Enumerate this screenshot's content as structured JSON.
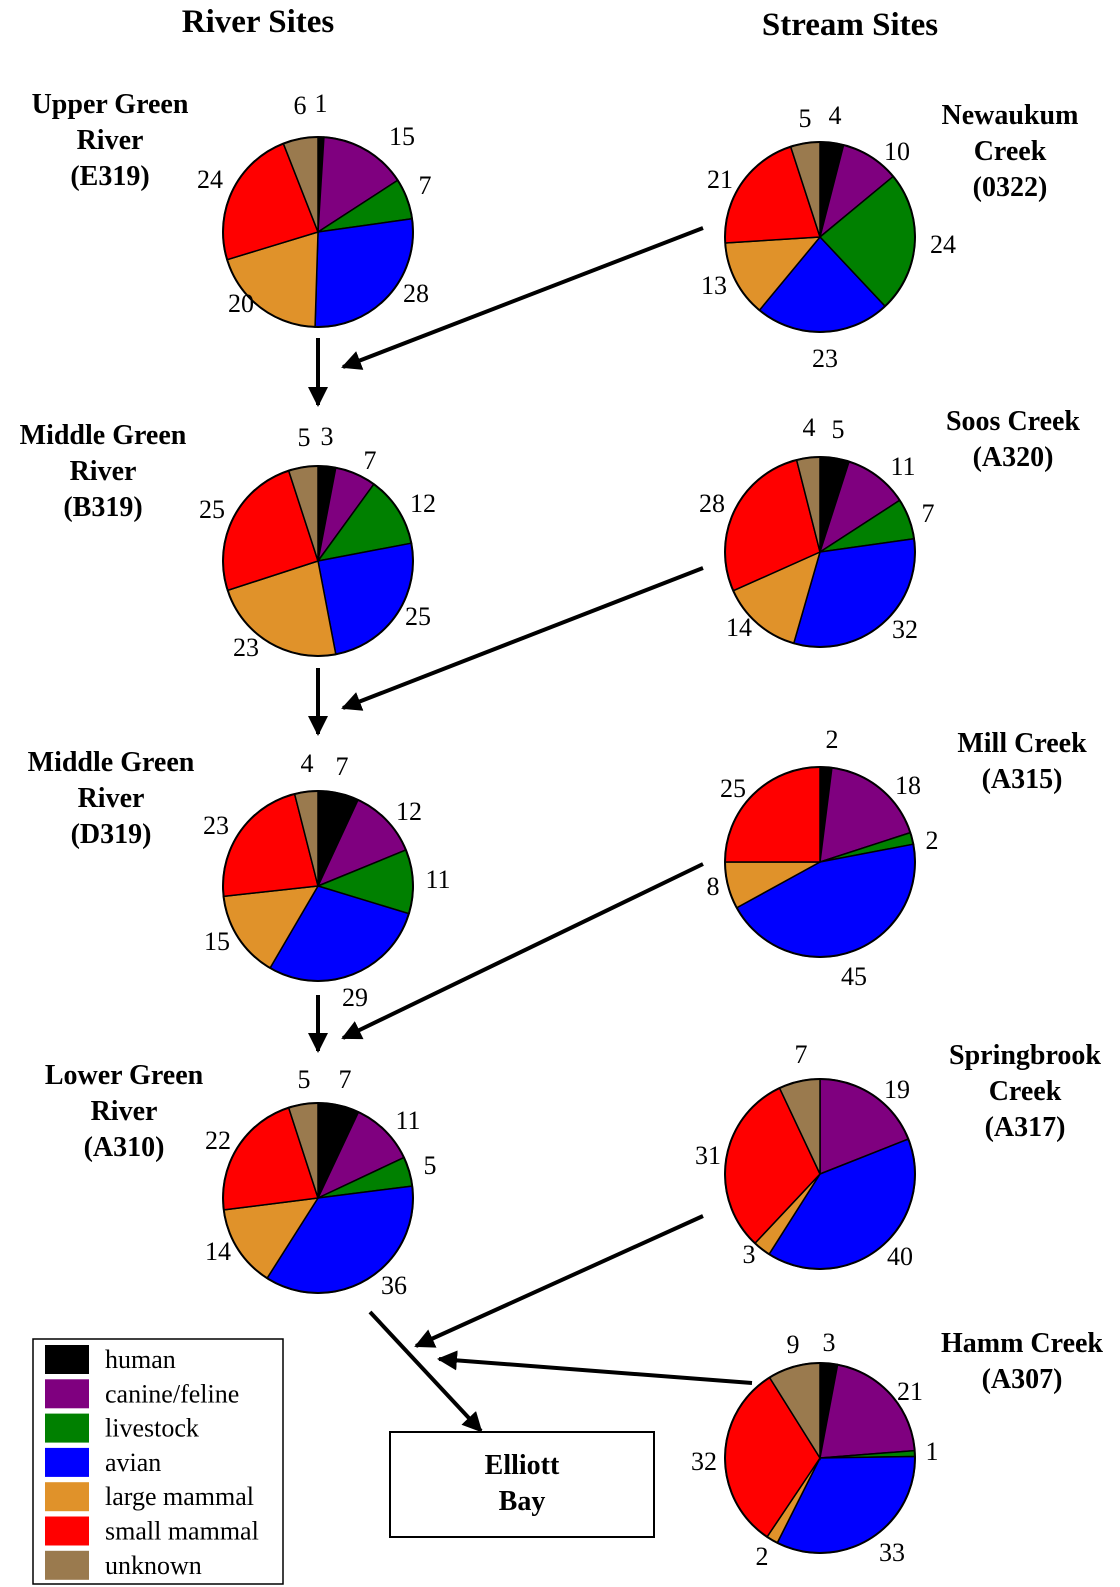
{
  "headings": {
    "river": "River Sites",
    "stream": "Stream Sites"
  },
  "destination": {
    "line1": "Elliott",
    "line2": "Bay"
  },
  "legend": [
    {
      "label": "human",
      "color": "#000000"
    },
    {
      "label": "canine/feline",
      "color": "#7f007f"
    },
    {
      "label": "livestock",
      "color": "#008000"
    },
    {
      "label": "avian",
      "color": "#0000ff"
    },
    {
      "label": "large mammal",
      "color": "#e0922a"
    },
    {
      "label": "small mammal",
      "color": "#ff0000"
    },
    {
      "label": "unknown",
      "color": "#9a7a4e"
    }
  ],
  "chart_data": [
    {
      "type": "pie",
      "site": [
        "Upper Green",
        "River",
        "(E319)"
      ],
      "categories": [
        "human",
        "canine/feline",
        "livestock",
        "avian",
        "large mammal",
        "small mammal",
        "unknown"
      ],
      "values": [
        1,
        15,
        7,
        28,
        20,
        24,
        6
      ]
    },
    {
      "type": "pie",
      "site": [
        "Middle Green",
        "River",
        "(B319)"
      ],
      "categories": [
        "human",
        "canine/feline",
        "livestock",
        "avian",
        "large mammal",
        "small mammal",
        "unknown"
      ],
      "values": [
        3,
        7,
        12,
        25,
        23,
        25,
        5
      ]
    },
    {
      "type": "pie",
      "site": [
        "Middle Green",
        "River",
        "(D319)"
      ],
      "categories": [
        "human",
        "canine/feline",
        "livestock",
        "avian",
        "large mammal",
        "small mammal",
        "unknown"
      ],
      "values": [
        7,
        12,
        11,
        29,
        15,
        23,
        4
      ]
    },
    {
      "type": "pie",
      "site": [
        "Lower Green",
        "River",
        "(A310)"
      ],
      "categories": [
        "human",
        "canine/feline",
        "livestock",
        "avian",
        "large mammal",
        "small mammal",
        "unknown"
      ],
      "values": [
        7,
        11,
        5,
        36,
        14,
        22,
        5
      ]
    },
    {
      "type": "pie",
      "site": [
        "Newaukum",
        "Creek",
        "(0322)"
      ],
      "categories": [
        "human",
        "canine/feline",
        "livestock",
        "avian",
        "large mammal",
        "small mammal",
        "unknown"
      ],
      "values": [
        4,
        10,
        24,
        23,
        13,
        21,
        5
      ]
    },
    {
      "type": "pie",
      "site": [
        "Soos Creek",
        "(A320)"
      ],
      "categories": [
        "human",
        "canine/feline",
        "livestock",
        "avian",
        "large mammal",
        "small mammal",
        "unknown"
      ],
      "values": [
        5,
        11,
        7,
        32,
        14,
        28,
        4
      ]
    },
    {
      "type": "pie",
      "site": [
        "Mill Creek",
        "(A315)"
      ],
      "categories": [
        "human",
        "canine/feline",
        "livestock",
        "avian",
        "large mammal",
        "small mammal",
        "unknown"
      ],
      "values": [
        2,
        18,
        2,
        45,
        8,
        25,
        0
      ]
    },
    {
      "type": "pie",
      "site": [
        "Springbrook",
        "Creek",
        "(A317)"
      ],
      "categories": [
        "human",
        "canine/feline",
        "livestock",
        "avian",
        "large mammal",
        "small mammal",
        "unknown"
      ],
      "values": [
        0,
        19,
        0,
        40,
        3,
        31,
        7
      ]
    },
    {
      "type": "pie",
      "site": [
        "Hamm Creek",
        "(A307)"
      ],
      "categories": [
        "human",
        "canine/feline",
        "livestock",
        "avian",
        "large mammal",
        "small mammal",
        "unknown"
      ],
      "values": [
        3,
        21,
        1,
        33,
        2,
        32,
        9
      ]
    }
  ]
}
